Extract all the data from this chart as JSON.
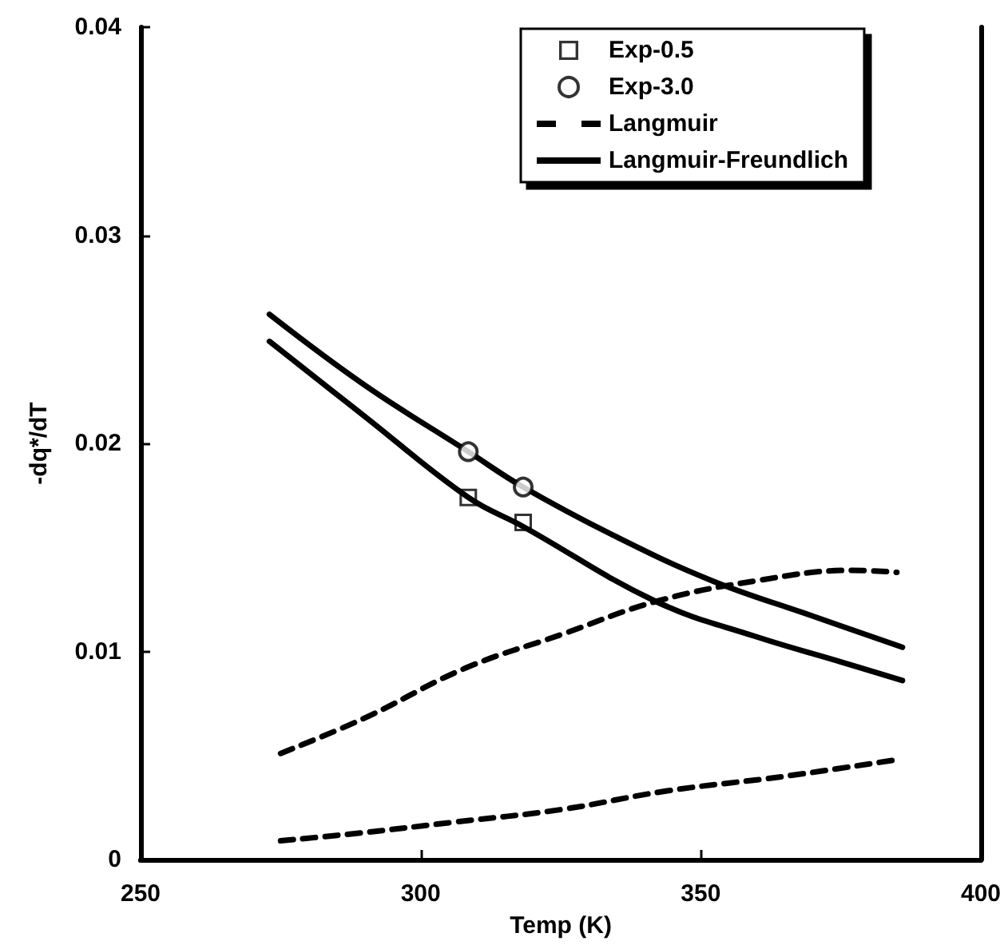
{
  "chart_data": {
    "type": "line",
    "xlabel": "Temp (K)",
    "ylabel": "-dq*/dT",
    "xlim": [
      250,
      400
    ],
    "xticks": [
      250,
      300,
      350,
      400
    ],
    "ylim": [
      0,
      0.04
    ],
    "yticks": [
      0,
      0.01,
      0.02,
      0.03,
      0.04
    ],
    "grid": false,
    "legend": "top right",
    "line_style": "solid",
    "series": [
      {
        "name": "Exp-0.5",
        "type": "scatter",
        "marker": "square",
        "color": "#000000",
        "x": [
          308.5,
          318.3
        ],
        "values": [
          0.0174,
          0.0162
        ]
      },
      {
        "name": "Exp-3.0",
        "type": "scatter",
        "marker": "circle",
        "color": "#000000",
        "x": [
          308.5,
          318.3
        ],
        "values": [
          0.0196,
          0.0179
        ]
      },
      {
        "name": "Langmuir",
        "line_style": "dashed",
        "color": "#000000",
        "x": [
          275,
          290,
          308,
          325,
          342,
          360,
          377,
          385
        ],
        "values": [
          0.0051,
          0.0068,
          0.0092,
          0.0108,
          0.0124,
          0.0134,
          0.0139,
          0.0138
        ]
      },
      {
        "line_style": "dashed",
        "color": "#000000",
        "x": [
          275,
          290,
          306,
          325,
          344,
          365,
          385
        ],
        "values": [
          0.0009,
          0.0013,
          0.0018,
          0.0024,
          0.0033,
          0.004,
          0.0048
        ]
      },
      {
        "name": "Langmuir-Freundlich",
        "color": "#000000",
        "x": [
          273,
          290,
          308.5,
          318.3,
          335,
          352,
          370,
          386
        ],
        "values": [
          0.0262,
          0.0228,
          0.0196,
          0.0179,
          0.0155,
          0.0134,
          0.0117,
          0.0102
        ]
      },
      {
        "color": "#000000",
        "x": [
          273,
          290,
          308.5,
          318.3,
          342,
          360,
          375,
          386
        ],
        "values": [
          0.0249,
          0.0213,
          0.0174,
          0.016,
          0.0124,
          0.0107,
          0.0095,
          0.0086
        ]
      }
    ]
  }
}
